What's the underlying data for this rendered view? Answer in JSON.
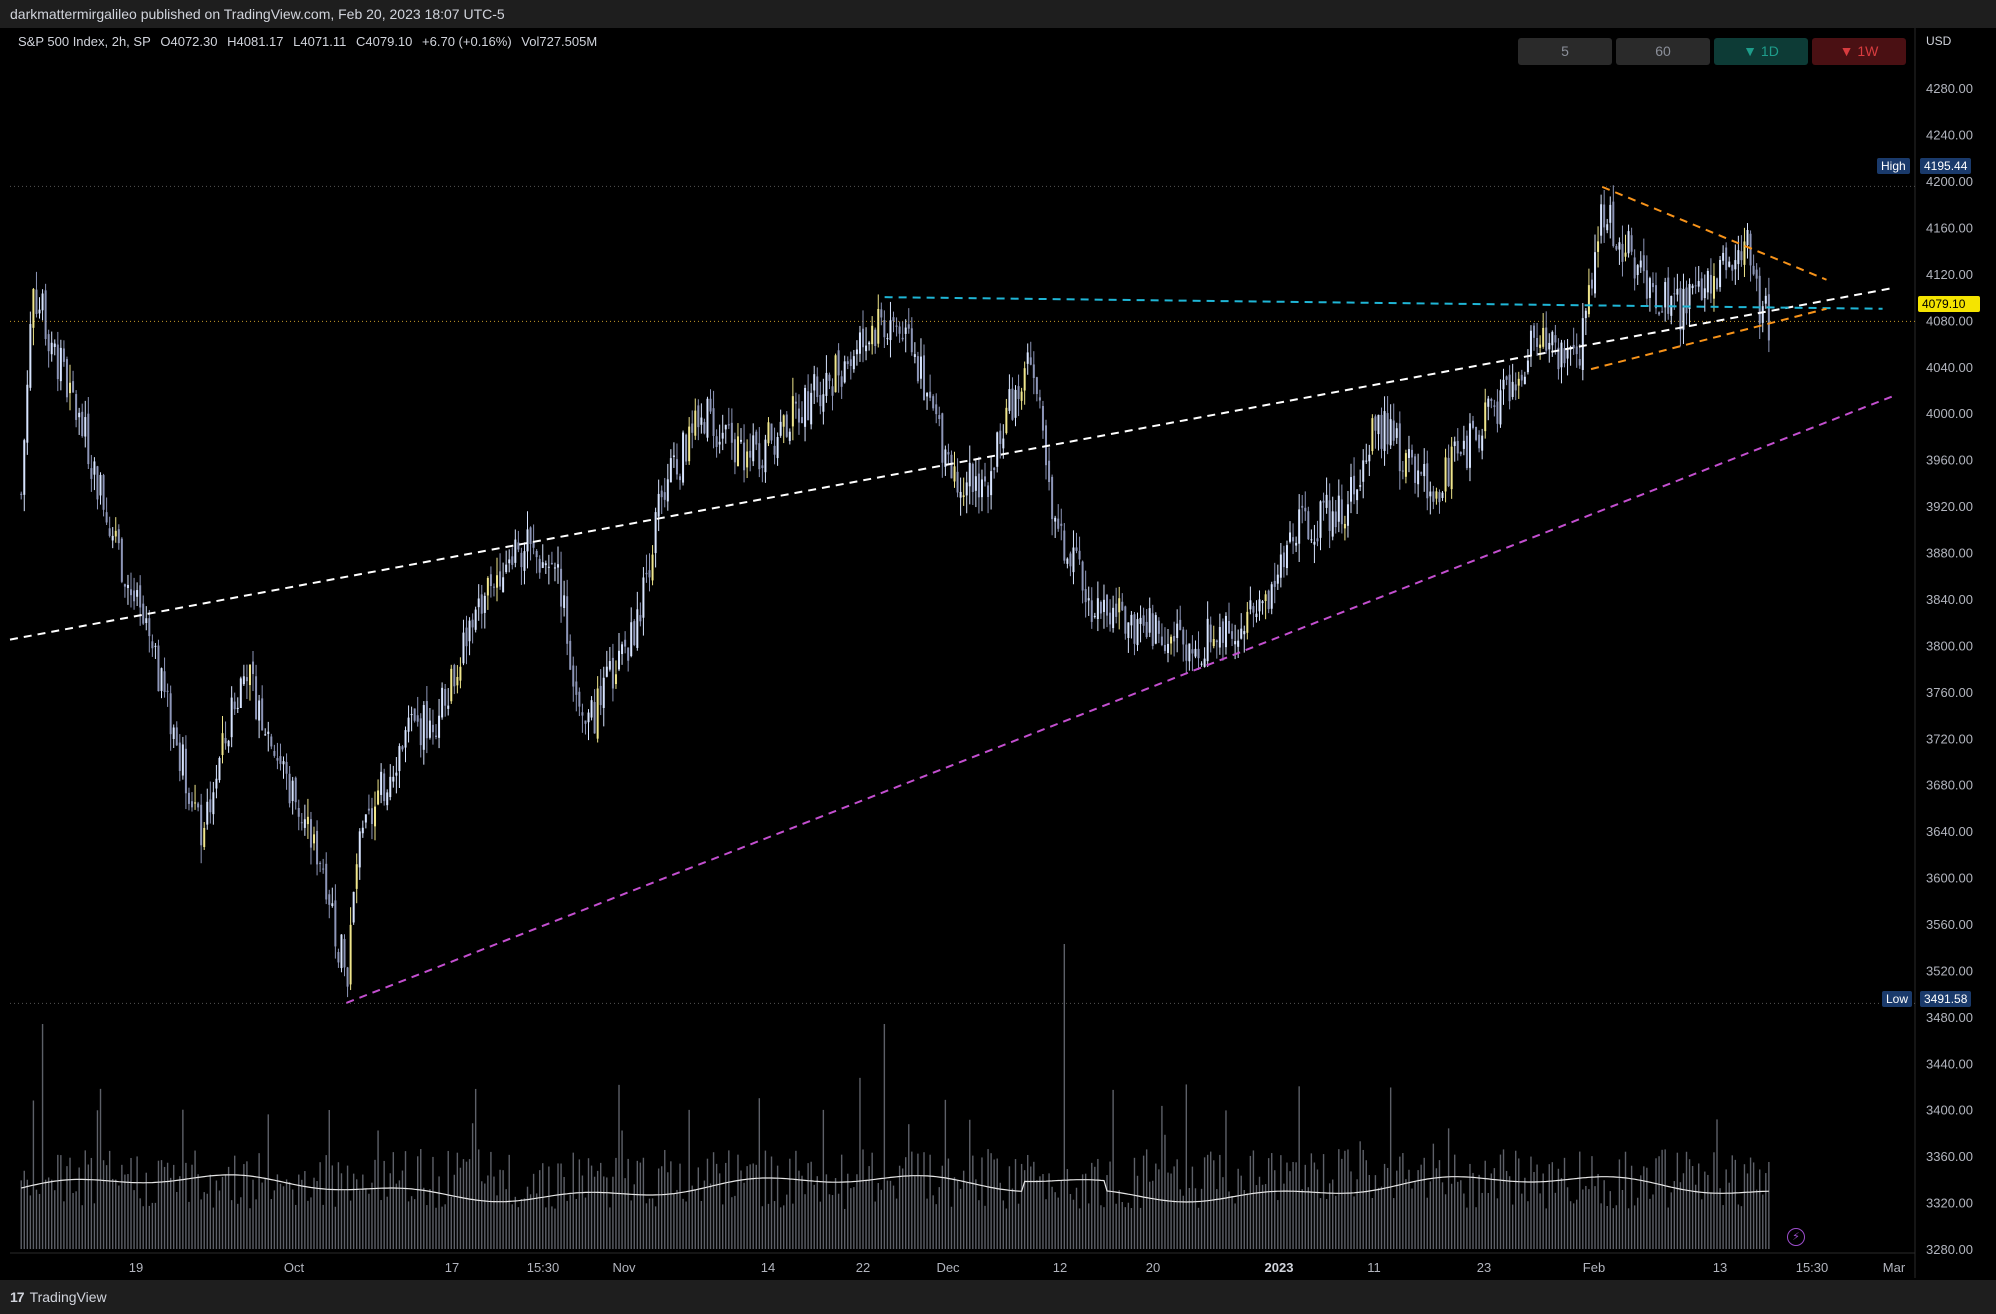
{
  "header": {
    "published": "darkmattermirgalileo published on TradingView.com, Feb 20, 2023 18:07 UTC-5"
  },
  "legend": {
    "symbol": "S&P 500 Index, 2h, SP",
    "open": "O4072.30",
    "high": "H4081.17",
    "low": "L4071.11",
    "close": "C4079.10",
    "change": "+6.70 (+0.16%)",
    "volume": "Vol727.505M"
  },
  "intervals": [
    {
      "label": "5",
      "style": "gray"
    },
    {
      "label": "60",
      "style": "gray"
    },
    {
      "label": "▼ 1D",
      "style": "green"
    },
    {
      "label": "▼ 1W",
      "style": "red"
    }
  ],
  "price_axis": {
    "currency": "USD",
    "high_label": "High",
    "high_value": "4195.44",
    "low_label": "Low",
    "low_value": "3491.58",
    "last_value": "4079.10"
  },
  "footer": {
    "logo": "17",
    "brand": "TradingView"
  },
  "chart_data": {
    "type": "candlestick",
    "symbol": "S&P 500 Index",
    "interval": "2h",
    "ylim": [
      3280,
      4300
    ],
    "yticks": [
      3280,
      3320,
      3360,
      3400,
      3440,
      3480,
      3520,
      3560,
      3600,
      3640,
      3680,
      3720,
      3760,
      3800,
      3840,
      3880,
      3920,
      3960,
      4000,
      4040,
      4080,
      4120,
      4160,
      4200,
      4240,
      4280
    ],
    "xticks": [
      "19",
      "Oct",
      "17",
      "15:30",
      "Nov",
      "14",
      "22",
      "Dec",
      "12",
      "20",
      "2023",
      "11",
      "23",
      "Feb",
      "13",
      "15:30",
      "Mar"
    ],
    "xtick_bold": [
      "2023"
    ],
    "close_path": [
      {
        "date": "Sep 14",
        "close": 3930
      },
      {
        "date": "Sep 15",
        "close": 4110
      },
      {
        "date": "Sep 20",
        "close": 3970
      },
      {
        "date": "Sep 23",
        "close": 3870
      },
      {
        "date": "Sep 26",
        "close": 3780
      },
      {
        "date": "Sep 29",
        "close": 3680
      },
      {
        "date": "Sep 30",
        "close": 3640
      },
      {
        "date": "Oct 4",
        "close": 3780
      },
      {
        "date": "Oct 7",
        "close": 3700
      },
      {
        "date": "Oct 11",
        "close": 3610
      },
      {
        "date": "Oct 13",
        "close": 3510
      },
      {
        "date": "Oct 14",
        "close": 3620
      },
      {
        "date": "Oct 18",
        "close": 3720
      },
      {
        "date": "Oct 21",
        "close": 3740
      },
      {
        "date": "Oct 25",
        "close": 3840
      },
      {
        "date": "Oct 28",
        "close": 3890
      },
      {
        "date": "Nov 1",
        "close": 3860
      },
      {
        "date": "Nov 3",
        "close": 3720
      },
      {
        "date": "Nov 8",
        "close": 3820
      },
      {
        "date": "Nov 10",
        "close": 3930
      },
      {
        "date": "Nov 14",
        "close": 4000
      },
      {
        "date": "Nov 18",
        "close": 3960
      },
      {
        "date": "Nov 22",
        "close": 4000
      },
      {
        "date": "Nov 25",
        "close": 4030
      },
      {
        "date": "Nov 30",
        "close": 4080
      },
      {
        "date": "Dec 2",
        "close": 4070
      },
      {
        "date": "Dec 6",
        "close": 3950
      },
      {
        "date": "Dec 9",
        "close": 3940
      },
      {
        "date": "Dec 13",
        "close": 4060
      },
      {
        "date": "Dec 15",
        "close": 3900
      },
      {
        "date": "Dec 19",
        "close": 3830
      },
      {
        "date": "Dec 22",
        "close": 3820
      },
      {
        "date": "Dec 28",
        "close": 3800
      },
      {
        "date": "Jan 3",
        "close": 3830
      },
      {
        "date": "Jan 6",
        "close": 3900
      },
      {
        "date": "Jan 10",
        "close": 3920
      },
      {
        "date": "Jan 13",
        "close": 3990
      },
      {
        "date": "Jan 18",
        "close": 3930
      },
      {
        "date": "Jan 20",
        "close": 3960
      },
      {
        "date": "Jan 24",
        "close": 4010
      },
      {
        "date": "Jan 27",
        "close": 4060
      },
      {
        "date": "Jan 31",
        "close": 4050
      },
      {
        "date": "Feb 2",
        "close": 4180
      },
      {
        "date": "Feb 6",
        "close": 4110
      },
      {
        "date": "Feb 9",
        "close": 4090
      },
      {
        "date": "Feb 13",
        "close": 4130
      },
      {
        "date": "Feb 15",
        "close": 4150
      },
      {
        "date": "Feb 16",
        "close": 4090
      },
      {
        "date": "Feb 17",
        "close": 4079
      }
    ],
    "trendlines": [
      {
        "name": "white-trendline",
        "color": "#ffffff",
        "from": {
          "date": "Sep 13",
          "price": 3805
        },
        "to": {
          "date": "Feb 28",
          "price": 4108
        }
      },
      {
        "name": "magenta-trendline",
        "color": "#c34fcf",
        "from": {
          "date": "Oct 13",
          "price": 3492
        },
        "to": {
          "date": "Feb 28",
          "price": 4015
        }
      },
      {
        "name": "cyan-resistance-line",
        "color": "#1fb6d6",
        "from": {
          "date": "Nov 30",
          "price": 4100
        },
        "to": {
          "date": "Feb 27",
          "price": 4090
        }
      },
      {
        "name": "orange-upper-line",
        "color": "#f7931a",
        "from": {
          "date": "Feb 2",
          "price": 4195
        },
        "to": {
          "date": "Feb 22",
          "price": 4115
        }
      },
      {
        "name": "orange-lower-line",
        "color": "#f7931a",
        "from": {
          "date": "Feb 1",
          "price": 4038
        },
        "to": {
          "date": "Feb 22",
          "price": 4090
        }
      }
    ],
    "reference_lines": [
      {
        "name": "high",
        "price": 4195.44
      },
      {
        "name": "low",
        "price": 3491.58
      },
      {
        "name": "last",
        "price": 4079.1
      }
    ],
    "volume_spikes": [
      {
        "date": "Sep 16",
        "volume_level": "high"
      },
      {
        "date": "Nov 30",
        "volume_level": "high"
      },
      {
        "date": "Dec 16",
        "volume_level": "very-high"
      }
    ]
  }
}
